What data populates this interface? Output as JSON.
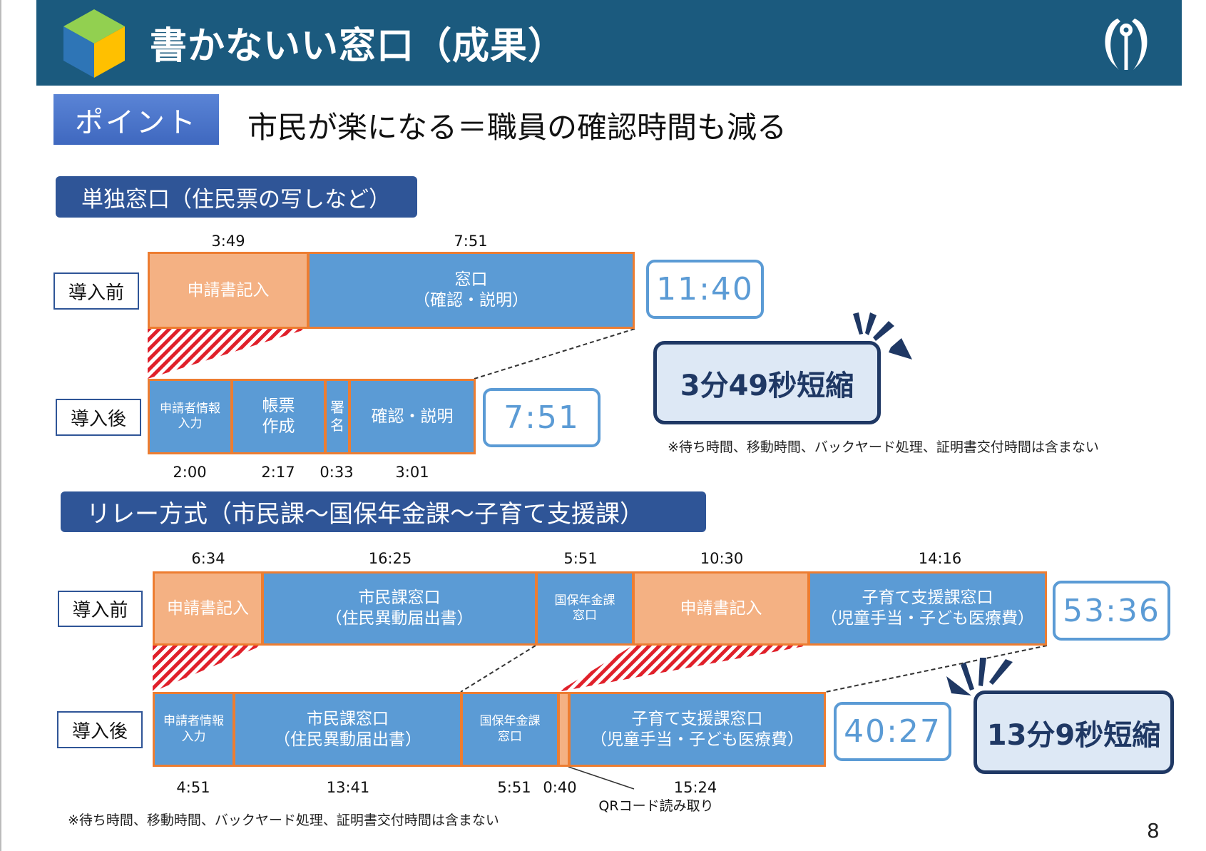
{
  "header": {
    "title": "書かないい窓口（成果）",
    "logo": "cube-icon",
    "emblem": "city-emblem-icon"
  },
  "point": {
    "label": "ポイント",
    "text": "市民が楽になる＝職員の確認時間も減る"
  },
  "single": {
    "heading": "単独窓口（住民票の写しなど）",
    "before": {
      "tag": "導入前",
      "segments": [
        {
          "label": "申請書記入",
          "time": "3:49"
        },
        {
          "label": "窓口",
          "label2": "（確認・説明）",
          "time": "7:51"
        }
      ],
      "total": "11:40"
    },
    "after": {
      "tag": "導入後",
      "segments": [
        {
          "label": "申請者情報",
          "label2": "入力",
          "time": "2:00"
        },
        {
          "label": "帳票",
          "label2": "作成",
          "time": "2:17"
        },
        {
          "label": "署",
          "label2": "名",
          "time": "0:33"
        },
        {
          "label": "確認・説明",
          "time": "3:01"
        }
      ],
      "total": "7:51"
    },
    "saving": "3分49秒短縮",
    "note": "※待ち時間、移動時間、バックヤード処理、証明書交付時間は含まない"
  },
  "relay": {
    "heading": "リレー方式（市民課～国保年金課～子育て支援課）",
    "before": {
      "tag": "導入前",
      "segments": [
        {
          "label": "申請書記入",
          "time": "6:34"
        },
        {
          "label": "市民課窓口",
          "label2": "（住民異動届出書）",
          "time": "16:25"
        },
        {
          "label": "国保年金課",
          "label2": "窓口",
          "time": "5:51"
        },
        {
          "label": "申請書記入",
          "time": "10:30"
        },
        {
          "label": "子育て支援課窓口",
          "label2": "（児童手当・子ども医療費）",
          "time": "14:16"
        }
      ],
      "total": "53:36"
    },
    "after": {
      "tag": "導入後",
      "segments": [
        {
          "label": "申請者情報",
          "label2": "入力",
          "time": "4:51"
        },
        {
          "label": "市民課窓口",
          "label2": "（住民異動届出書）",
          "time": "13:41"
        },
        {
          "label": "国保年金課",
          "label2": "窓口",
          "time": "5:51"
        },
        {
          "label": "",
          "time": "0:40"
        },
        {
          "label": "子育て支援課窓口",
          "label2": "（児童手当・子ども医療費）",
          "time": "15:24"
        }
      ],
      "total": "40:27",
      "qr_label": "QRコード読み取り"
    },
    "saving": "13分9秒短縮",
    "note": "※待ち時間、移動時間、バックヤード処理、証明書交付時間は含まない"
  },
  "page_number": "8",
  "colors": {
    "banner": "#1b5a7e",
    "heading": "#2f5597",
    "blue": "#5b9bd5",
    "orange": "#f4b183",
    "orange_border": "#ed7d31",
    "navy": "#1f3864"
  }
}
